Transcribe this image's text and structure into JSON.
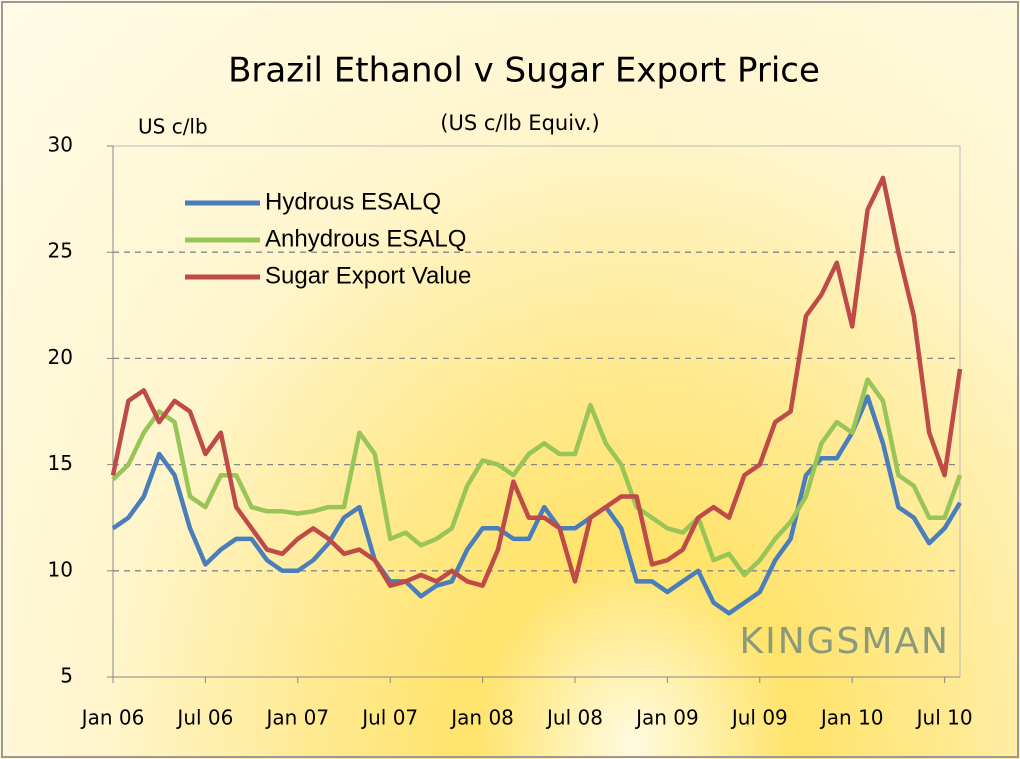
{
  "chart_data": {
    "type": "line",
    "title": "Brazil Ethanol v Sugar Export Price",
    "subtitle": "(US c/lb Equiv.)",
    "y_axis_label": "US c/lb",
    "watermark": "KINGSMAN",
    "categories": [
      "Jan 06",
      null,
      null,
      null,
      null,
      null,
      "Jul 06",
      null,
      null,
      null,
      null,
      null,
      "Jan 07",
      null,
      null,
      null,
      null,
      null,
      "Jul 07",
      null,
      null,
      null,
      null,
      null,
      "Jan 08",
      null,
      null,
      null,
      null,
      null,
      "Jul 08",
      null,
      null,
      null,
      null,
      null,
      "Jan 09",
      null,
      null,
      null,
      null,
      null,
      "Jul 09",
      null,
      null,
      null,
      null,
      null,
      "Jan 10",
      null,
      null,
      null,
      null,
      null,
      "Jul 10",
      null
    ],
    "series": [
      {
        "name": "Hydrous ESALQ",
        "color": "#4a7ebb",
        "values": [
          12,
          12.5,
          13.5,
          15.5,
          14.5,
          12,
          10.3,
          11,
          11.5,
          11.5,
          10.5,
          10,
          10,
          10.5,
          11.3,
          12.5,
          13,
          10.5,
          9.5,
          9.5,
          8.8,
          9.3,
          9.5,
          11,
          12,
          12,
          11.5,
          11.5,
          13,
          12,
          12,
          12.5,
          13,
          12,
          9.5,
          9.5,
          9,
          9.5,
          10,
          8.5,
          8,
          8.5,
          9,
          10.5,
          11.5,
          14.5,
          15.3,
          15.3,
          16.5,
          18.2,
          16,
          13,
          12.5,
          11.3,
          12,
          13.2
        ]
      },
      {
        "name": "Anhydrous ESALQ",
        "color": "#98c458",
        "values": [
          14.3,
          15,
          16.5,
          17.5,
          17,
          13.5,
          13,
          14.5,
          14.5,
          13,
          12.8,
          12.8,
          12.7,
          12.8,
          13,
          13,
          16.5,
          15.5,
          11.5,
          11.8,
          11.2,
          11.5,
          12,
          14,
          15.2,
          15,
          14.5,
          15.5,
          16,
          15.5,
          15.5,
          17.8,
          16,
          15,
          13,
          12.5,
          12,
          11.8,
          12.5,
          10.5,
          10.8,
          9.8,
          10.5,
          11.5,
          12.3,
          13.5,
          16,
          17,
          16.5,
          19,
          18,
          14.5,
          14,
          12.5,
          12.5,
          14.5
        ]
      },
      {
        "name": "Sugar Export Value",
        "color": "#be4b48",
        "values": [
          14.5,
          18,
          18.5,
          17,
          18,
          17.5,
          15.5,
          16.5,
          13,
          12,
          11,
          10.8,
          11.5,
          12,
          11.5,
          10.8,
          11,
          10.5,
          9.3,
          9.5,
          9.8,
          9.5,
          10,
          9.5,
          9.3,
          11,
          14.2,
          12.5,
          12.5,
          12,
          9.5,
          12.5,
          13,
          13.5,
          13.5,
          10.3,
          10.5,
          11,
          12.5,
          13,
          12.5,
          14.5,
          15,
          17,
          17.5,
          22,
          23,
          24.5,
          21.5,
          27,
          28.5,
          25,
          22,
          16.5,
          14.5,
          19.5
        ]
      }
    ],
    "ylim": [
      5,
      30
    ],
    "yticks": [
      5,
      10,
      15,
      20,
      25,
      30
    ],
    "grid": true,
    "legend": "upper left"
  }
}
